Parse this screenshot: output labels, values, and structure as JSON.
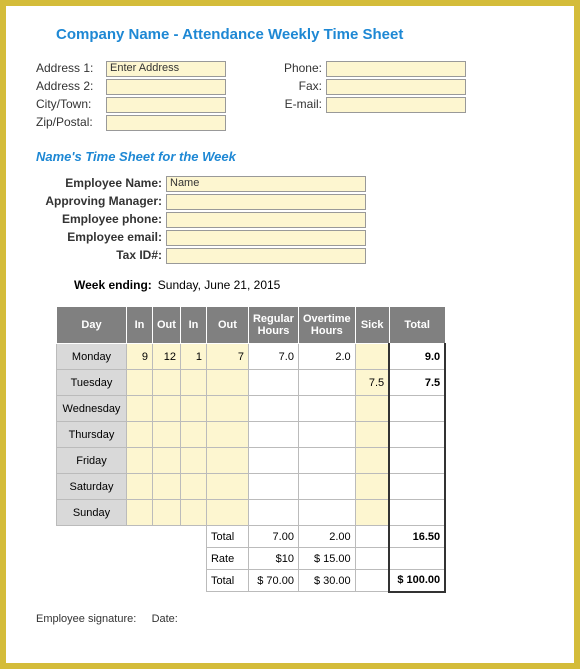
{
  "title": "Company Name - Attendance Weekly Time Sheet",
  "address": {
    "line1_label": "Address 1:",
    "line1_value": "Enter Address",
    "line2_label": "Address 2:",
    "city_label": "City/Town:",
    "zip_label": "Zip/Postal:",
    "phone_label": "Phone:",
    "fax_label": "Fax:",
    "email_label": "E-mail:"
  },
  "subtitle": "Name's Time Sheet for the Week",
  "employee": {
    "name_label": "Employee Name:",
    "name_value": "Name",
    "manager_label": "Approving Manager:",
    "phone_label": "Employee phone:",
    "email_label": "Employee email:",
    "tax_label": "Tax ID#:"
  },
  "week": {
    "label": "Week ending:",
    "value": "Sunday, June 21, 2015"
  },
  "table": {
    "headers": {
      "day": "Day",
      "in1": "In",
      "out1": "Out",
      "in2": "In",
      "out2": "Out",
      "regular": "Regular Hours",
      "overtime": "Overtime Hours",
      "sick": "Sick",
      "total": "Total"
    },
    "days": [
      "Monday",
      "Tuesday",
      "Wednesday",
      "Thursday",
      "Friday",
      "Saturday",
      "Sunday"
    ],
    "rows": [
      {
        "in1": "9",
        "out1": "12",
        "in2": "1",
        "out2": "7",
        "reg": "7.0",
        "ot": "2.0",
        "sick": "",
        "total": "9.0"
      },
      {
        "in1": "",
        "out1": "",
        "in2": "",
        "out2": "",
        "reg": "",
        "ot": "",
        "sick": "7.5",
        "total": "7.5"
      },
      {
        "in1": "",
        "out1": "",
        "in2": "",
        "out2": "",
        "reg": "",
        "ot": "",
        "sick": "",
        "total": ""
      },
      {
        "in1": "",
        "out1": "",
        "in2": "",
        "out2": "",
        "reg": "",
        "ot": "",
        "sick": "",
        "total": ""
      },
      {
        "in1": "",
        "out1": "",
        "in2": "",
        "out2": "",
        "reg": "",
        "ot": "",
        "sick": "",
        "total": ""
      },
      {
        "in1": "",
        "out1": "",
        "in2": "",
        "out2": "",
        "reg": "",
        "ot": "",
        "sick": "",
        "total": ""
      },
      {
        "in1": "",
        "out1": "",
        "in2": "",
        "out2": "",
        "reg": "",
        "ot": "",
        "sick": "",
        "total": ""
      }
    ],
    "summary": {
      "total_label": "Total",
      "total_reg": "7.00",
      "total_ot": "2.00",
      "total_all": "16.50",
      "rate_label": "Rate",
      "rate_reg": "$10",
      "rate_ot": "$   15.00",
      "grand_label": "Total",
      "grand_reg": "$   70.00",
      "grand_ot": "$   30.00",
      "grand_all": "$  100.00"
    }
  },
  "signature": {
    "emp": "Employee signature:",
    "date": "Date:"
  },
  "colors": {
    "border": "#d4bc3a",
    "heading": "#1e88d4",
    "field_bg": "#fdf6d0",
    "header_bg": "#808080",
    "day_bg": "#d9d9d9"
  }
}
